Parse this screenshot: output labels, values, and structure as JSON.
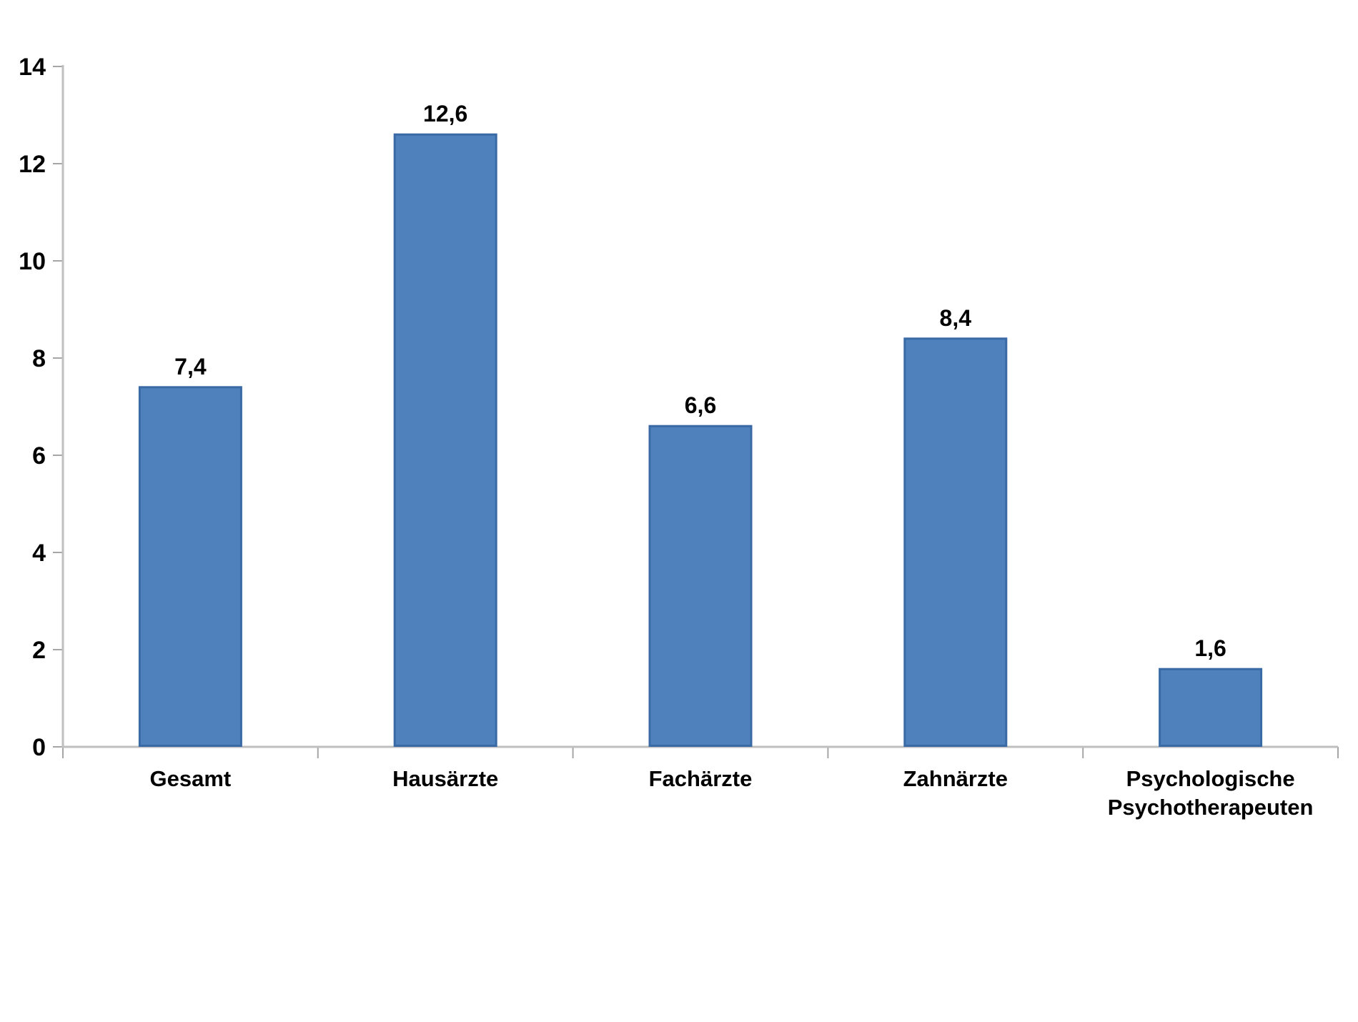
{
  "page": {
    "background_color": "#ffffff"
  },
  "chart_data": {
    "type": "bar",
    "title": "",
    "xlabel": "",
    "ylabel": "",
    "categories": [
      "Gesamt",
      "Hausärzte",
      "Fachärzte",
      "Zahnärzte",
      "Psychologische Psychotherapeuten"
    ],
    "category_label_lines": [
      [
        "Gesamt"
      ],
      [
        "Hausärzte"
      ],
      [
        "Fachärzte"
      ],
      [
        "Zahnärzte"
      ],
      [
        "Psychologische",
        "Psychotherapeuten"
      ]
    ],
    "values": [
      7.4,
      12.6,
      6.6,
      8.4,
      1.6
    ],
    "value_labels": [
      "7,4",
      "12,6",
      "6,6",
      "8,4",
      "1,6"
    ],
    "ylim": [
      0,
      14
    ],
    "ytick_step": 2,
    "ytick_labels": [
      "0",
      "2",
      "4",
      "6",
      "8",
      "10",
      "12",
      "14"
    ],
    "grid": false,
    "legend": null,
    "colors": {
      "bar_fill": "#4F81BD",
      "bar_border": "#3A6AA5",
      "axis_line": "#BFBFBF",
      "tick_mark": "#A6A6A6",
      "label_text": "#000000"
    }
  }
}
